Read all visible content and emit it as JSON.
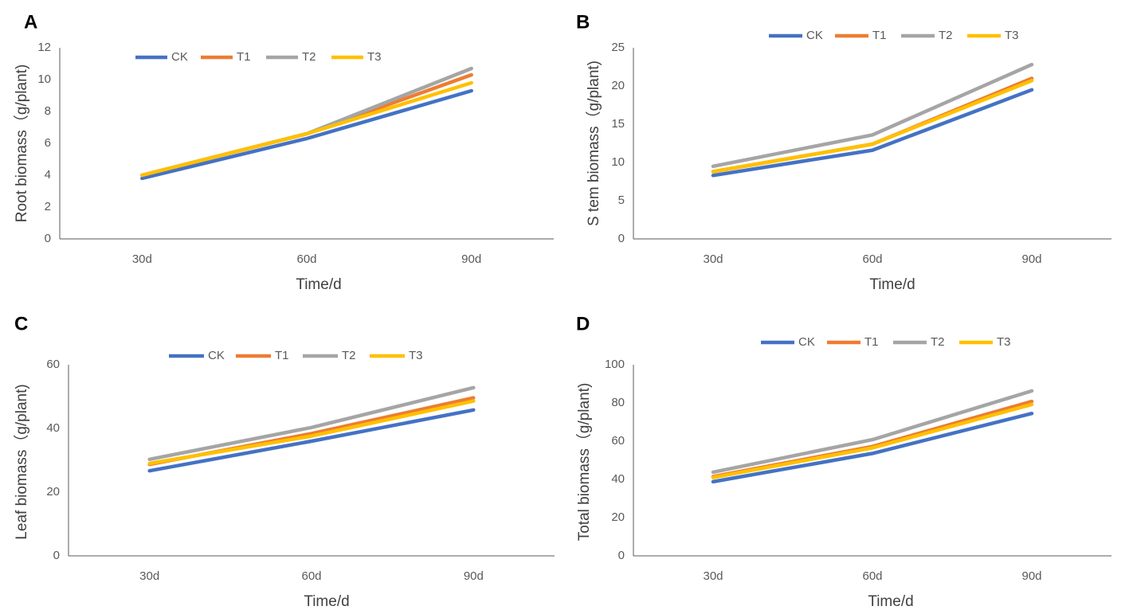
{
  "series_colors": {
    "CK": "#4472C4",
    "T1": "#ED7D31",
    "T2": "#A5A5A5",
    "T3": "#FFC000"
  },
  "chart_data": [
    {
      "panel": "A",
      "type": "line",
      "categories": [
        "30d",
        "60d",
        "90d"
      ],
      "series": [
        {
          "name": "CK",
          "values": [
            3.8,
            6.3,
            9.3
          ]
        },
        {
          "name": "T1",
          "values": [
            4.0,
            6.6,
            10.3
          ]
        },
        {
          "name": "T2",
          "values": [
            4.0,
            6.6,
            10.7
          ]
        },
        {
          "name": "T3",
          "values": [
            4.0,
            6.6,
            9.8
          ]
        }
      ],
      "xlabel": "Time/d",
      "ylabel": "Root biomass（g/plant)",
      "ylim": [
        0,
        12
      ],
      "yticks": [
        0,
        2,
        4,
        6,
        8,
        10,
        12
      ],
      "legend": "top-left"
    },
    {
      "panel": "B",
      "type": "line",
      "categories": [
        "30d",
        "60d",
        "90d"
      ],
      "series": [
        {
          "name": "CK",
          "values": [
            8.3,
            11.6,
            19.5
          ]
        },
        {
          "name": "T1",
          "values": [
            8.8,
            12.4,
            21.0
          ]
        },
        {
          "name": "T2",
          "values": [
            9.5,
            13.6,
            22.8
          ]
        },
        {
          "name": "T3",
          "values": [
            8.8,
            12.4,
            20.7
          ]
        }
      ],
      "xlabel": "Time/d",
      "ylabel": "S tem biomass（g/plant)",
      "ylim": [
        0,
        25
      ],
      "yticks": [
        0,
        5,
        10,
        15,
        20,
        25
      ],
      "legend": "top"
    },
    {
      "panel": "C",
      "type": "line",
      "categories": [
        "30d",
        "60d",
        "90d"
      ],
      "series": [
        {
          "name": "CK",
          "values": [
            26.7,
            36.0,
            45.8
          ]
        },
        {
          "name": "T1",
          "values": [
            28.7,
            38.4,
            49.6
          ]
        },
        {
          "name": "T2",
          "values": [
            30.3,
            40.3,
            52.8
          ]
        },
        {
          "name": "T3",
          "values": [
            29.0,
            37.6,
            48.6
          ]
        }
      ],
      "xlabel": "Time/d",
      "ylabel": "Leaf biomass（g/plant)",
      "ylim": [
        0,
        60
      ],
      "yticks": [
        0,
        20,
        40,
        60
      ],
      "legend": "top"
    },
    {
      "panel": "D",
      "type": "line",
      "categories": [
        "30d",
        "60d",
        "90d"
      ],
      "series": [
        {
          "name": "CK",
          "values": [
            38.8,
            53.6,
            74.5
          ]
        },
        {
          "name": "T1",
          "values": [
            41.5,
            57.2,
            80.8
          ]
        },
        {
          "name": "T2",
          "values": [
            43.8,
            60.8,
            86.3
          ]
        },
        {
          "name": "T3",
          "values": [
            41.0,
            56.5,
            79.2
          ]
        }
      ],
      "xlabel": "Time/d",
      "ylabel": "Total biomass（g/plant)",
      "ylim": [
        0,
        100
      ],
      "yticks": [
        0,
        20,
        40,
        60,
        80,
        100
      ],
      "legend": "top"
    }
  ]
}
